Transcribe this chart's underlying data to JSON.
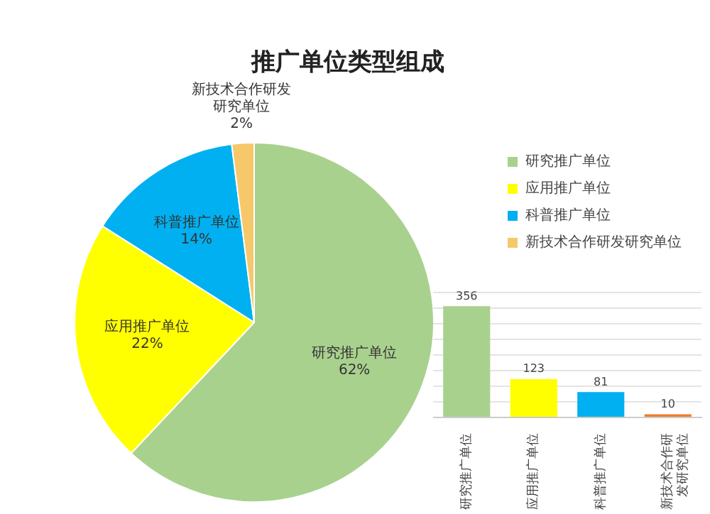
{
  "chart_data": [
    {
      "type": "pie",
      "title": "推广单位类型组成",
      "categories": [
        "研究推广单位",
        "应用推广单位",
        "科普推广单位",
        "新技术合作研发研究单位"
      ],
      "values": [
        62,
        22,
        14,
        2
      ],
      "colors": [
        "#a9d18e",
        "#ffff00",
        "#00b0f0",
        "#f6c86a"
      ],
      "value_labels": [
        "62%",
        "22%",
        "14%",
        "2%"
      ],
      "legend": "right"
    },
    {
      "type": "bar",
      "categories": [
        "研究推广单位",
        "应用推广单位",
        "科普推广单位",
        "新技术合作研发研究单位"
      ],
      "values": [
        356,
        123,
        81,
        10
      ],
      "colors": [
        "#a9d18e",
        "#ffff00",
        "#00b0f0",
        "#ed7d31"
      ],
      "data_labels": true,
      "grid": "y",
      "tick_labels": "x",
      "ylim": [
        0,
        400
      ],
      "yticks": [
        {
          "value": 0,
          "label": null
        },
        {
          "value": 50,
          "label": null
        },
        {
          "value": 100,
          "label": null
        },
        {
          "value": 150,
          "label": null
        },
        {
          "value": 200,
          "label": null
        },
        {
          "value": 250,
          "label": null
        },
        {
          "value": 300,
          "label": null
        },
        {
          "value": 350,
          "label": null
        },
        {
          "value": 400,
          "label": null
        }
      ]
    }
  ]
}
